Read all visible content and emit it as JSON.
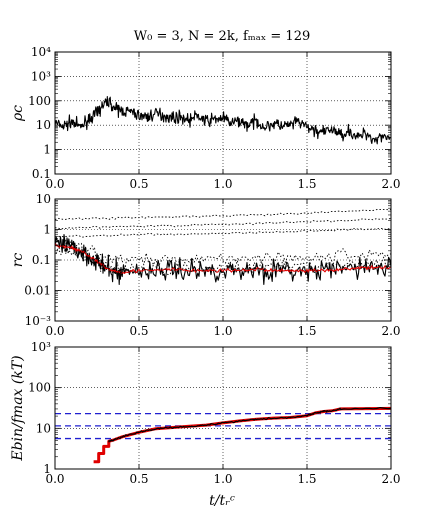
{
  "figure": {
    "title": "W₀ = 3, N = 2k, fₘₐₓ = 129",
    "xlabel": "t/tᵣᶜ"
  },
  "chart_data": [
    {
      "type": "line",
      "ylabel": "ρc",
      "xlim": [
        0,
        2
      ],
      "ylim": [
        0.1,
        10000
      ],
      "yscale": "log",
      "grid": true,
      "x_ticks": [
        "0.0",
        "0.5",
        "1.0",
        "1.5",
        "2.0"
      ],
      "y_ticks": [
        {
          "v": 0.1,
          "label": "0.1"
        },
        {
          "v": 1,
          "label": "1"
        },
        {
          "v": 10,
          "label": "10"
        },
        {
          "v": 100,
          "label": "100"
        },
        {
          "v": 1000,
          "label": "10³"
        },
        {
          "v": 10000,
          "label": "10⁴"
        }
      ],
      "series": [
        {
          "color": "#000000",
          "x": [
            0.0,
            0.05,
            0.1,
            0.15,
            0.2,
            0.25,
            0.28,
            0.32,
            0.36,
            0.4,
            0.45,
            0.5,
            0.55,
            0.6,
            0.65,
            0.7,
            0.75,
            0.8,
            0.85,
            0.9,
            0.95,
            1.0,
            1.05,
            1.1,
            1.15,
            1.2,
            1.25,
            1.3,
            1.35,
            1.4,
            1.45,
            1.5,
            1.55,
            1.6,
            1.65,
            1.7,
            1.75,
            1.8,
            1.85,
            1.9,
            1.95,
            2.0
          ],
          "values": [
            12,
            9,
            14,
            8,
            18,
            30,
            60,
            100,
            45,
            40,
            35,
            25,
            22,
            30,
            25,
            20,
            22,
            16,
            25,
            14,
            18,
            20,
            12,
            15,
            10,
            15,
            8,
            12,
            9,
            10,
            14,
            8,
            6,
            5,
            7,
            4,
            6,
            3,
            5,
            2.5,
            4,
            3
          ],
          "noise": 0.35
        }
      ]
    },
    {
      "type": "line",
      "ylabel": "rc",
      "xlim": [
        0,
        2
      ],
      "ylim": [
        0.001,
        10
      ],
      "yscale": "log",
      "grid": true,
      "x_ticks": [
        "0.0",
        "0.5",
        "1.0",
        "1.5",
        "2.0"
      ],
      "y_ticks": [
        {
          "v": 0.001,
          "label": "10⁻³"
        },
        {
          "v": 0.01,
          "label": "0.01"
        },
        {
          "v": 0.1,
          "label": "0.1"
        },
        {
          "v": 1,
          "label": "1"
        },
        {
          "v": 10,
          "label": "10"
        }
      ],
      "series": [
        {
          "color": "#000000",
          "x": [
            0.0,
            0.05,
            0.1,
            0.15,
            0.2,
            0.25,
            0.3,
            0.35,
            0.4,
            0.5,
            0.6,
            0.7,
            0.8,
            0.9,
            1.0,
            1.1,
            1.2,
            1.3,
            1.4,
            1.5,
            1.6,
            1.7,
            1.8,
            1.9,
            2.0
          ],
          "values": [
            0.3,
            0.28,
            0.25,
            0.2,
            0.15,
            0.09,
            0.05,
            0.04,
            0.04,
            0.045,
            0.045,
            0.05,
            0.045,
            0.045,
            0.045,
            0.045,
            0.05,
            0.045,
            0.045,
            0.04,
            0.045,
            0.05,
            0.06,
            0.055,
            0.06
          ],
          "noise": 0.5
        },
        {
          "color": "#e00000",
          "x": [
            0.0,
            0.05,
            0.1,
            0.15,
            0.2,
            0.25,
            0.3,
            0.35,
            0.4,
            0.5,
            0.6,
            0.7,
            0.8,
            0.9,
            1.0,
            1.1,
            1.2,
            1.3,
            1.4,
            1.5,
            1.6,
            1.7,
            1.8,
            1.9,
            2.0
          ],
          "values": [
            0.3,
            0.28,
            0.25,
            0.2,
            0.14,
            0.09,
            0.055,
            0.045,
            0.04,
            0.045,
            0.045,
            0.05,
            0.045,
            0.045,
            0.045,
            0.045,
            0.05,
            0.045,
            0.045,
            0.045,
            0.045,
            0.05,
            0.055,
            0.055,
            0.06
          ],
          "noise": 0.08
        },
        {
          "color": "#000000",
          "dashed": true,
          "x": [
            0.0,
            0.25,
            0.5,
            0.75,
            1.0,
            1.25,
            1.5,
            1.75,
            2.0
          ],
          "values": [
            2.2,
            2.3,
            2.5,
            2.6,
            2.8,
            3.0,
            3.4,
            4.0,
            4.5
          ],
          "noise": 0.05
        },
        {
          "color": "#000000",
          "dashed": true,
          "x": [
            0.0,
            0.25,
            0.5,
            0.75,
            1.0,
            1.25,
            1.5,
            1.75,
            2.0
          ],
          "values": [
            1.1,
            1.2,
            1.3,
            1.35,
            1.5,
            1.6,
            1.8,
            2.0,
            2.3
          ],
          "noise": 0.05
        },
        {
          "color": "#000000",
          "dashed": true,
          "x": [
            0.0,
            0.25,
            0.5,
            0.75,
            1.0,
            1.25,
            1.5,
            1.75,
            2.0
          ],
          "values": [
            0.6,
            0.6,
            0.7,
            0.7,
            0.75,
            0.8,
            0.9,
            1.0,
            1.1
          ],
          "noise": 0.05
        },
        {
          "color": "#000000",
          "dashed": true,
          "x": [
            0.0,
            0.1,
            0.2,
            0.3,
            0.4,
            0.6,
            0.8,
            1.0,
            1.2,
            1.4,
            1.6,
            1.8,
            2.0
          ],
          "values": [
            0.35,
            0.3,
            0.22,
            0.12,
            0.1,
            0.1,
            0.11,
            0.12,
            0.12,
            0.13,
            0.12,
            0.15,
            0.16
          ],
          "noise": 0.3
        },
        {
          "color": "#000000",
          "dashed": true,
          "x": [
            0.0,
            0.1,
            0.2,
            0.3,
            0.4,
            0.6,
            0.8,
            1.0,
            1.2,
            1.4,
            1.6,
            1.8,
            2.0
          ],
          "values": [
            0.2,
            0.18,
            0.12,
            0.06,
            0.05,
            0.05,
            0.05,
            0.06,
            0.055,
            0.06,
            0.06,
            0.07,
            0.08
          ],
          "noise": 0.3
        }
      ]
    },
    {
      "type": "line",
      "ylabel": "Ebin/fmax (kT)",
      "xlim": [
        0,
        2
      ],
      "ylim": [
        1,
        1000
      ],
      "yscale": "log",
      "grid": true,
      "x_ticks": [
        "0.0",
        "0.5",
        "1.0",
        "1.5",
        "2.0"
      ],
      "y_ticks": [
        {
          "v": 1,
          "label": "1"
        },
        {
          "v": 10,
          "label": "10"
        },
        {
          "v": 100,
          "label": "100"
        },
        {
          "v": 1000,
          "label": "10³"
        }
      ],
      "hlines": [
        {
          "y": 23,
          "color": "#2020d0",
          "dashed": true
        },
        {
          "y": 11.5,
          "color": "#2020d0",
          "dashed": true
        },
        {
          "y": 5.6,
          "color": "#2020d0",
          "dashed": true
        }
      ],
      "series": [
        {
          "color": "#e00000",
          "width": 3,
          "step": true,
          "x": [
            0.23,
            0.26,
            0.26,
            0.29,
            0.29,
            0.32,
            0.32,
            0.35,
            0.4,
            0.5,
            0.6,
            0.7,
            0.8,
            0.9,
            1.0,
            1.1,
            1.2,
            1.3,
            1.4,
            1.5,
            1.55,
            1.6,
            1.65,
            1.7,
            2.0
          ],
          "values": [
            1.5,
            1.5,
            2.4,
            2.4,
            3.6,
            3.6,
            4.8,
            5.2,
            6.2,
            8.0,
            9.8,
            10.5,
            11.2,
            12.0,
            13.6,
            15.2,
            16.8,
            17.8,
            18.5,
            20.5,
            24.0,
            26.0,
            27.0,
            30.0,
            31.0
          ],
          "noise": 0
        },
        {
          "color": "#000000",
          "width": 1.2,
          "x": [
            0.32,
            0.35,
            0.4,
            0.5,
            0.6,
            0.7,
            0.8,
            0.9,
            1.0,
            1.1,
            1.2,
            1.3,
            1.4,
            1.5,
            1.55,
            1.6,
            1.65,
            1.7,
            2.0
          ],
          "values": [
            4.8,
            5.2,
            6.2,
            8.0,
            9.8,
            10.5,
            11.2,
            12.0,
            13.6,
            15.2,
            16.8,
            17.8,
            18.5,
            20.5,
            24.0,
            26.0,
            27.0,
            30.0,
            31.0
          ],
          "noise": 0.03
        }
      ]
    }
  ]
}
